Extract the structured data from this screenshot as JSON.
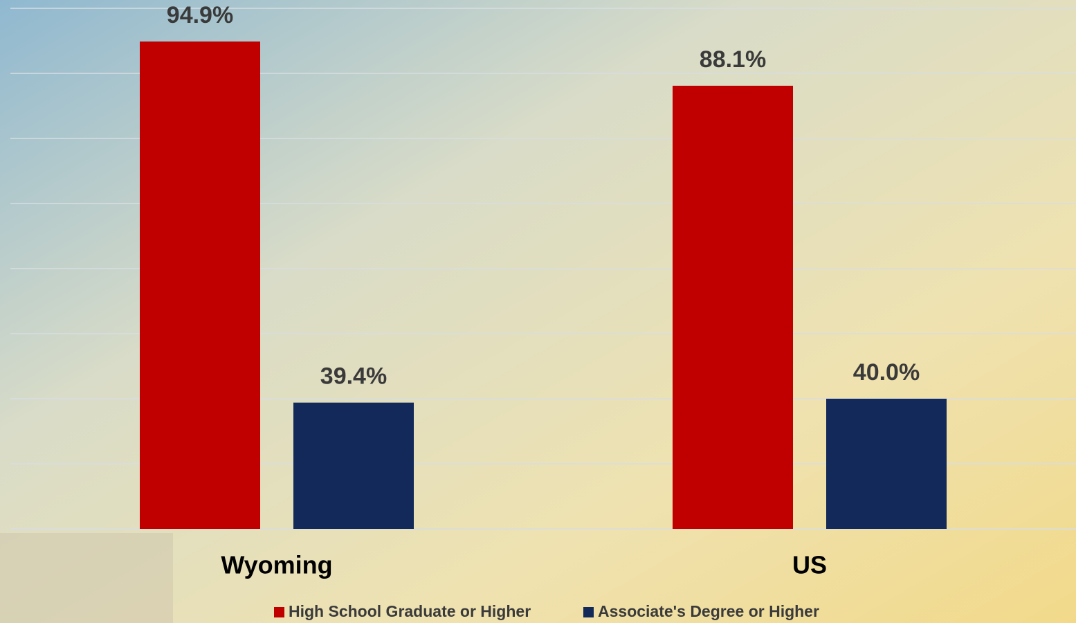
{
  "chart_data": {
    "type": "bar",
    "categories": [
      "Wyoming",
      "US"
    ],
    "series": [
      {
        "name": "High School Graduate or Higher",
        "color": "#c00000",
        "values": [
          94.9,
          88.1
        ],
        "value_labels": [
          "94.9%",
          "88.1%"
        ]
      },
      {
        "name": "Associate's Degree or Higher",
        "color": "#12295a",
        "values": [
          39.4,
          40.0
        ],
        "value_labels": [
          "39.4%",
          "40.0%"
        ]
      }
    ],
    "ylim": [
      20,
      100
    ],
    "yticks": [
      20,
      30,
      40,
      50,
      60,
      70,
      80,
      90,
      100
    ],
    "grid": true
  }
}
